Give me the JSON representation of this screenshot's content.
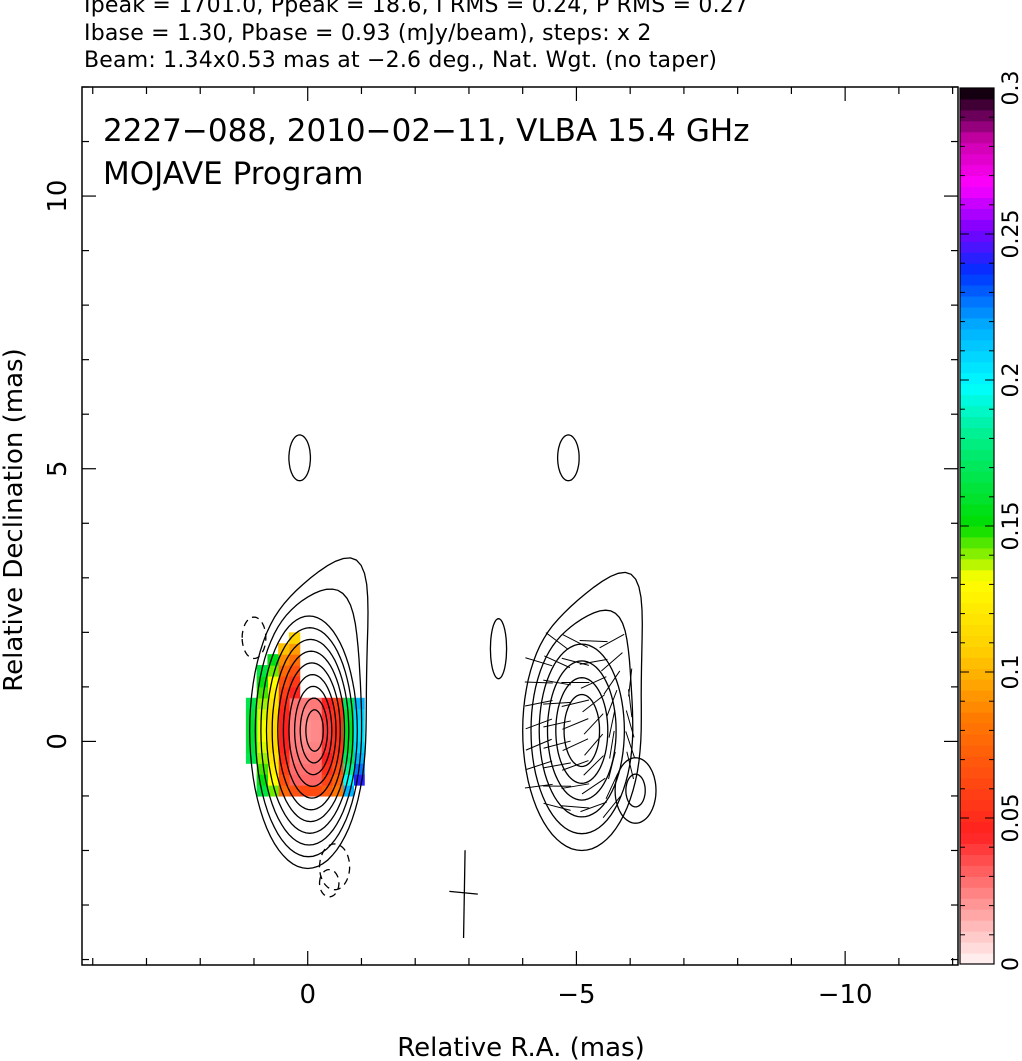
{
  "header": {
    "line1": "Ipeak = 1701.0, Ppeak = 18.6, I RMS = 0.24, P RMS = 0.27",
    "line2": "Ibase = 1.30, Pbase = 0.93 (mJy/beam), steps: x 2",
    "line3": "Beam: 1.34x0.53 mas at −2.6 deg., Nat. Wgt. (no taper)"
  },
  "chart_data": {
    "type": "contour",
    "title_line1": "2227−088, 2010−02−11, VLBA 15.4 GHz",
    "title_line2": "MOJAVE Program",
    "xlabel": "Relative R.A. (mas)",
    "ylabel": "Relative Declination (mas)",
    "xlim": [
      4.2,
      -12.1
    ],
    "ylim": [
      -4.1,
      12.0
    ],
    "xticks": [
      {
        "v": 0,
        "label": "0"
      },
      {
        "v": -5,
        "label": "−5"
      },
      {
        "v": -10,
        "label": "−10"
      }
    ],
    "yticks": [
      {
        "v": 0,
        "label": "0"
      },
      {
        "v": 5,
        "label": "5"
      },
      {
        "v": 10,
        "label": "10"
      }
    ],
    "colorbar": {
      "range": [
        0,
        0.3
      ],
      "ticks": [
        {
          "v": 0,
          "label": "0"
        },
        {
          "v": 0.05,
          "label": "0.05"
        },
        {
          "v": 0.1,
          "label": "0.1"
        },
        {
          "v": 0.15,
          "label": "0.15"
        },
        {
          "v": 0.2,
          "label": "0.2"
        },
        {
          "v": 0.25,
          "label": "0.25"
        },
        {
          "v": 0.3,
          "label": "0.3"
        }
      ]
    },
    "left_panel": {
      "center": [
        0.0,
        0.2
      ],
      "contour_levels": 11,
      "outer_semi_axes": [
        1.5,
        2.2
      ],
      "lobe_center": [
        -1.3,
        2.6
      ],
      "negative_contours": [
        {
          "x": 1.0,
          "y": 1.9,
          "a": 0.22,
          "b": 0.38
        },
        {
          "x": -0.5,
          "y": -2.3,
          "a": 0.28,
          "b": 0.42
        },
        {
          "x": -0.4,
          "y": -2.6,
          "a": 0.18,
          "b": 0.25
        }
      ]
    },
    "right_panel": {
      "center": [
        -5.1,
        0.4
      ],
      "contour_levels": 6,
      "x_offset": -5.0,
      "blobs": [
        {
          "x": -4.85,
          "y": 5.2,
          "a": 0.2,
          "b": 0.42
        },
        {
          "x": 0.15,
          "y": 5.2,
          "a": 0.2,
          "b": 0.42
        },
        {
          "x": -3.55,
          "y": 1.7,
          "a": 0.15,
          "b": 0.55
        },
        {
          "x": -6.1,
          "y": -0.9,
          "a": 0.38,
          "b": 0.6
        },
        {
          "x": -6.1,
          "y": -0.9,
          "a": 0.18,
          "b": 0.3
        }
      ]
    },
    "beam": {
      "x": -2.9,
      "y": -2.8,
      "major_mas": 1.34,
      "minor_mas": 0.53,
      "pa_deg": -2.6
    }
  }
}
